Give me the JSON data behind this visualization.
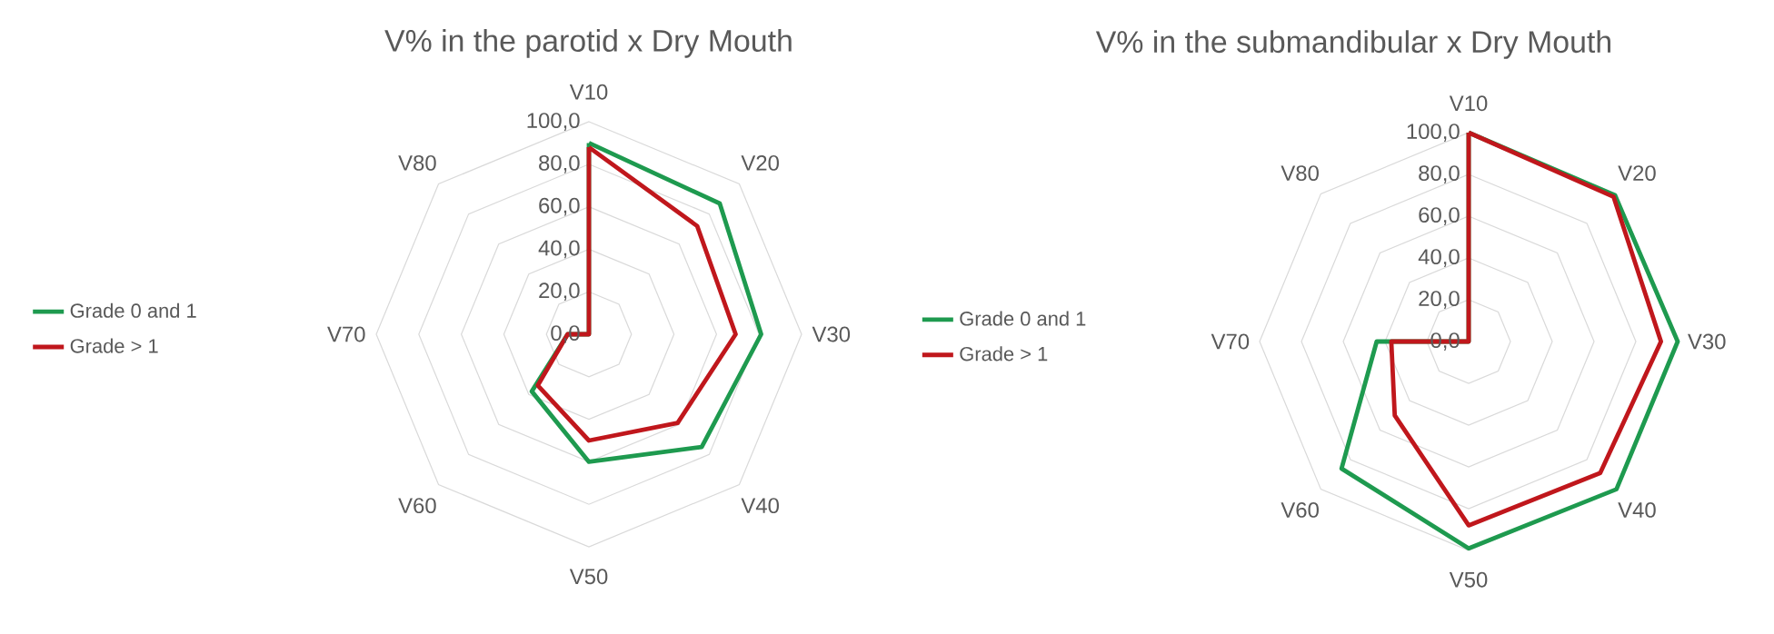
{
  "chart_data": [
    {
      "type": "radar",
      "title": "V% in the parotid x Dry Mouth",
      "categories": [
        "V10",
        "V20",
        "V30",
        "V40",
        "V50",
        "V60",
        "V70",
        "V80"
      ],
      "ylim": [
        0,
        100
      ],
      "yticks": [
        {
          "value": 0,
          "label": "0,0"
        },
        {
          "value": 20,
          "label": "20,0"
        },
        {
          "value": 40,
          "label": "40,0"
        },
        {
          "value": 60,
          "label": "60,0"
        },
        {
          "value": 80,
          "label": "80,0"
        },
        {
          "value": 100,
          "label": "100,0"
        }
      ],
      "grid": true,
      "legend": "left",
      "series": [
        {
          "name": "Grade 0 and 1",
          "color": "#1e9a4f",
          "values": [
            90,
            87,
            81,
            75,
            60,
            38,
            10,
            0
          ]
        },
        {
          "name": "Grade > 1",
          "color": "#c0171c",
          "values": [
            88,
            72,
            69,
            59,
            50,
            34,
            10,
            0
          ]
        }
      ]
    },
    {
      "type": "radar",
      "title": "V% in the submandibular x Dry Mouth",
      "categories": [
        "V10",
        "V20",
        "V30",
        "V40",
        "V50",
        "V60",
        "V70",
        "V80"
      ],
      "ylim": [
        0,
        100
      ],
      "yticks": [
        {
          "value": 0,
          "label": "0,0"
        },
        {
          "value": 20,
          "label": "20,0"
        },
        {
          "value": 40,
          "label": "40,0"
        },
        {
          "value": 60,
          "label": "60,0"
        },
        {
          "value": 80,
          "label": "80,0"
        },
        {
          "value": 100,
          "label": "100,0"
        }
      ],
      "grid": true,
      "legend": "left",
      "series": [
        {
          "name": "Grade 0 and 1",
          "color": "#1e9a4f",
          "values": [
            100,
            99,
            100,
            100,
            99,
            86,
            44,
            0
          ]
        },
        {
          "name": "Grade > 1",
          "color": "#c0171c",
          "values": [
            100,
            98,
            92,
            89,
            88,
            50,
            37,
            0
          ]
        }
      ]
    }
  ]
}
